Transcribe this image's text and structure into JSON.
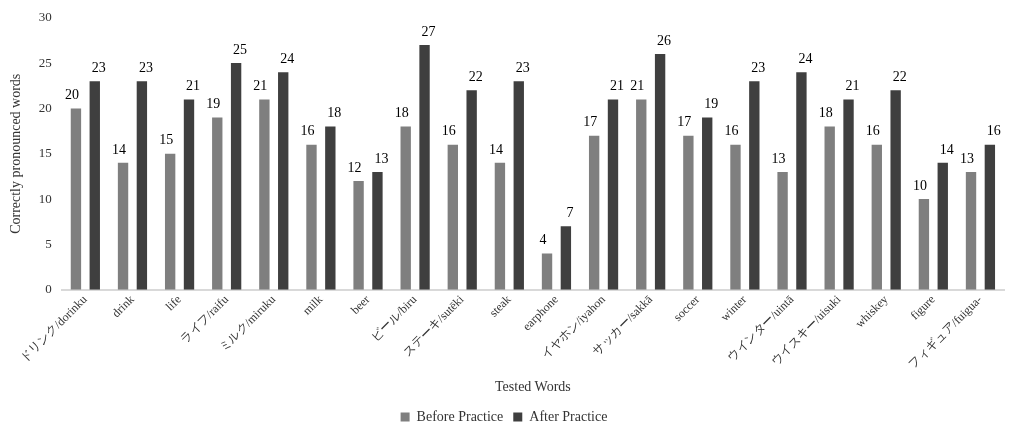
{
  "chart_data": {
    "type": "bar",
    "xlabel": "Tested Words",
    "ylabel": "Correctly pronounced words",
    "categories": [
      "ドリンク/dorinku",
      "drink",
      "life",
      "ライフ/raifu",
      "ミルク/miruku",
      "milk",
      "beer",
      "ビール/biru",
      "ステーキ/sutēki",
      "steak",
      "earphone",
      "イヤホン/iyahon",
      "サッカー/sakkā",
      "soccer",
      "winter",
      "ウインター/uintā",
      "ウイスキー/uisuki",
      "whiskey",
      "figure",
      "フィギュア/fuigua-"
    ],
    "series": [
      {
        "name": "Before Practice",
        "color": "#7f7f7f",
        "values": [
          20,
          14,
          15,
          19,
          21,
          16,
          12,
          18,
          16,
          14,
          4,
          17,
          21,
          17,
          16,
          13,
          18,
          16,
          10,
          13
        ]
      },
      {
        "name": "After Practice",
        "color": "#3f3f3f",
        "values": [
          23,
          23,
          21,
          25,
          24,
          18,
          13,
          27,
          22,
          23,
          7,
          21,
          26,
          19,
          23,
          24,
          21,
          22,
          14,
          16
        ]
      }
    ],
    "ylim": [
      0,
      30
    ],
    "yticks": [
      0,
      5,
      10,
      15,
      20,
      25,
      30
    ],
    "grid": false,
    "legend": "bottom",
    "data_labels": true
  }
}
